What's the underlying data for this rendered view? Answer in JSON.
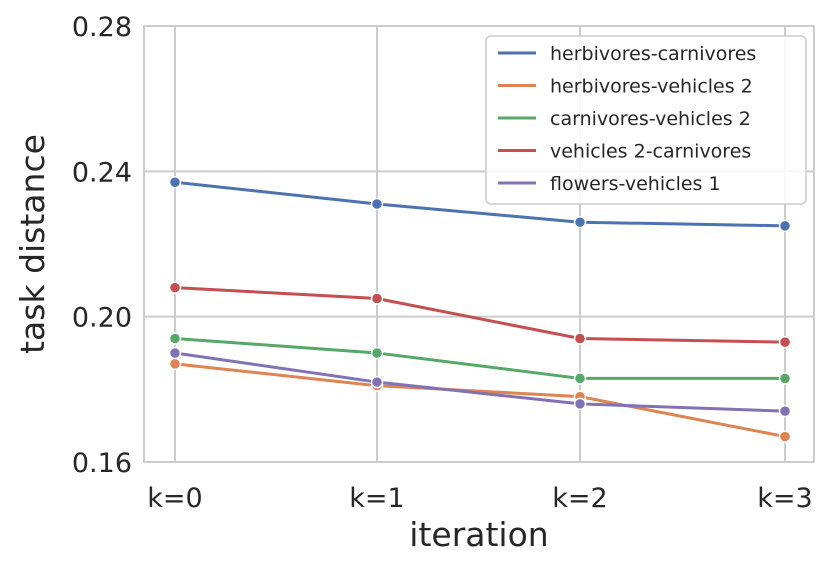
{
  "chart_data": {
    "type": "line",
    "title": "",
    "xlabel": "iteration",
    "ylabel": "task distance",
    "categories": [
      "k=0",
      "k=1",
      "k=2",
      "k=3"
    ],
    "ylim": [
      0.16,
      0.28
    ],
    "yticks": [
      "0.16",
      "0.20",
      "0.24",
      "0.28"
    ],
    "grid": true,
    "legend_position": "top-right",
    "series": [
      {
        "name": "herbivores-carnivores",
        "color": "#4c72b0",
        "values": [
          0.237,
          0.231,
          0.226,
          0.225
        ]
      },
      {
        "name": "herbivores-vehicles 2",
        "color": "#dd8452",
        "values": [
          0.187,
          0.181,
          0.178,
          0.167
        ]
      },
      {
        "name": "carnivores-vehicles 2",
        "color": "#55a868",
        "values": [
          0.194,
          0.19,
          0.183,
          0.183
        ]
      },
      {
        "name": "vehicles 2-carnivores",
        "color": "#c44e52",
        "values": [
          0.208,
          0.205,
          0.194,
          0.193
        ]
      },
      {
        "name": "flowers-vehicles 1",
        "color": "#8172b3",
        "values": [
          0.19,
          0.182,
          0.176,
          0.174
        ]
      }
    ]
  }
}
